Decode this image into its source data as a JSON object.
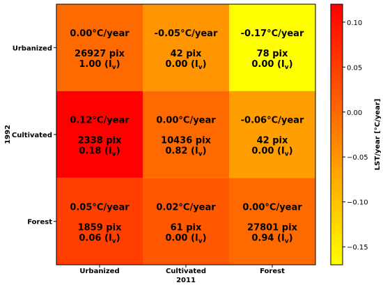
{
  "chart_data": {
    "type": "heatmap",
    "title": "",
    "xlabel": "2011",
    "ylabel": "1992",
    "x_categories": [
      "Urbanized",
      "Cultivated",
      "Forest"
    ],
    "y_categories": [
      "Urbanized",
      "Cultivated",
      "Forest"
    ],
    "values": [
      [
        0.0,
        -0.05,
        -0.17
      ],
      [
        0.12,
        0.0,
        -0.06
      ],
      [
        0.05,
        0.02,
        0.0
      ]
    ],
    "cells": [
      [
        {
          "rate": "0.00°C/year",
          "pix": "26927 pix",
          "iv": "1.00 (I",
          "unit": ")"
        },
        {
          "rate": "-0.05°C/year",
          "pix": "42 pix",
          "iv": "0.00 (I",
          "unit": ")"
        },
        {
          "rate": "-0.17°C/year",
          "pix": "78 pix",
          "iv": "0.00 (I",
          "unit": ")"
        }
      ],
      [
        {
          "rate": "0.12°C/year",
          "pix": "2338 pix",
          "iv": "0.18 (I",
          "unit": ")"
        },
        {
          "rate": "0.00°C/year",
          "pix": "10436 pix",
          "iv": "0.82 (I",
          "unit": ")"
        },
        {
          "rate": "-0.06°C/year",
          "pix": "42 pix",
          "iv": "0.00 (I",
          "unit": ")"
        }
      ],
      [
        {
          "rate": "0.05°C/year",
          "pix": "1859 pix",
          "iv": "0.06 (I",
          "unit": ")"
        },
        {
          "rate": "0.02°C/year",
          "pix": "61 pix",
          "iv": "0.00 (I",
          "unit": ")"
        },
        {
          "rate": "0.00°C/year",
          "pix": "27801 pix",
          "iv": "0.94 (I",
          "unit": ")"
        }
      ]
    ],
    "iv_subscript": "v",
    "colorbar": {
      "label": "LST/year [°C/year]",
      "range": [
        -0.17,
        0.12
      ],
      "ticks": [
        "0.10",
        "0.05",
        "0.00",
        "−0.05",
        "−0.10",
        "−0.15"
      ],
      "tick_values": [
        0.1,
        0.05,
        0.0,
        -0.05,
        -0.1,
        -0.15
      ],
      "colormap": "autumn_r",
      "colors": {
        "low": "#ffff00",
        "high": "#ff0000"
      }
    }
  }
}
